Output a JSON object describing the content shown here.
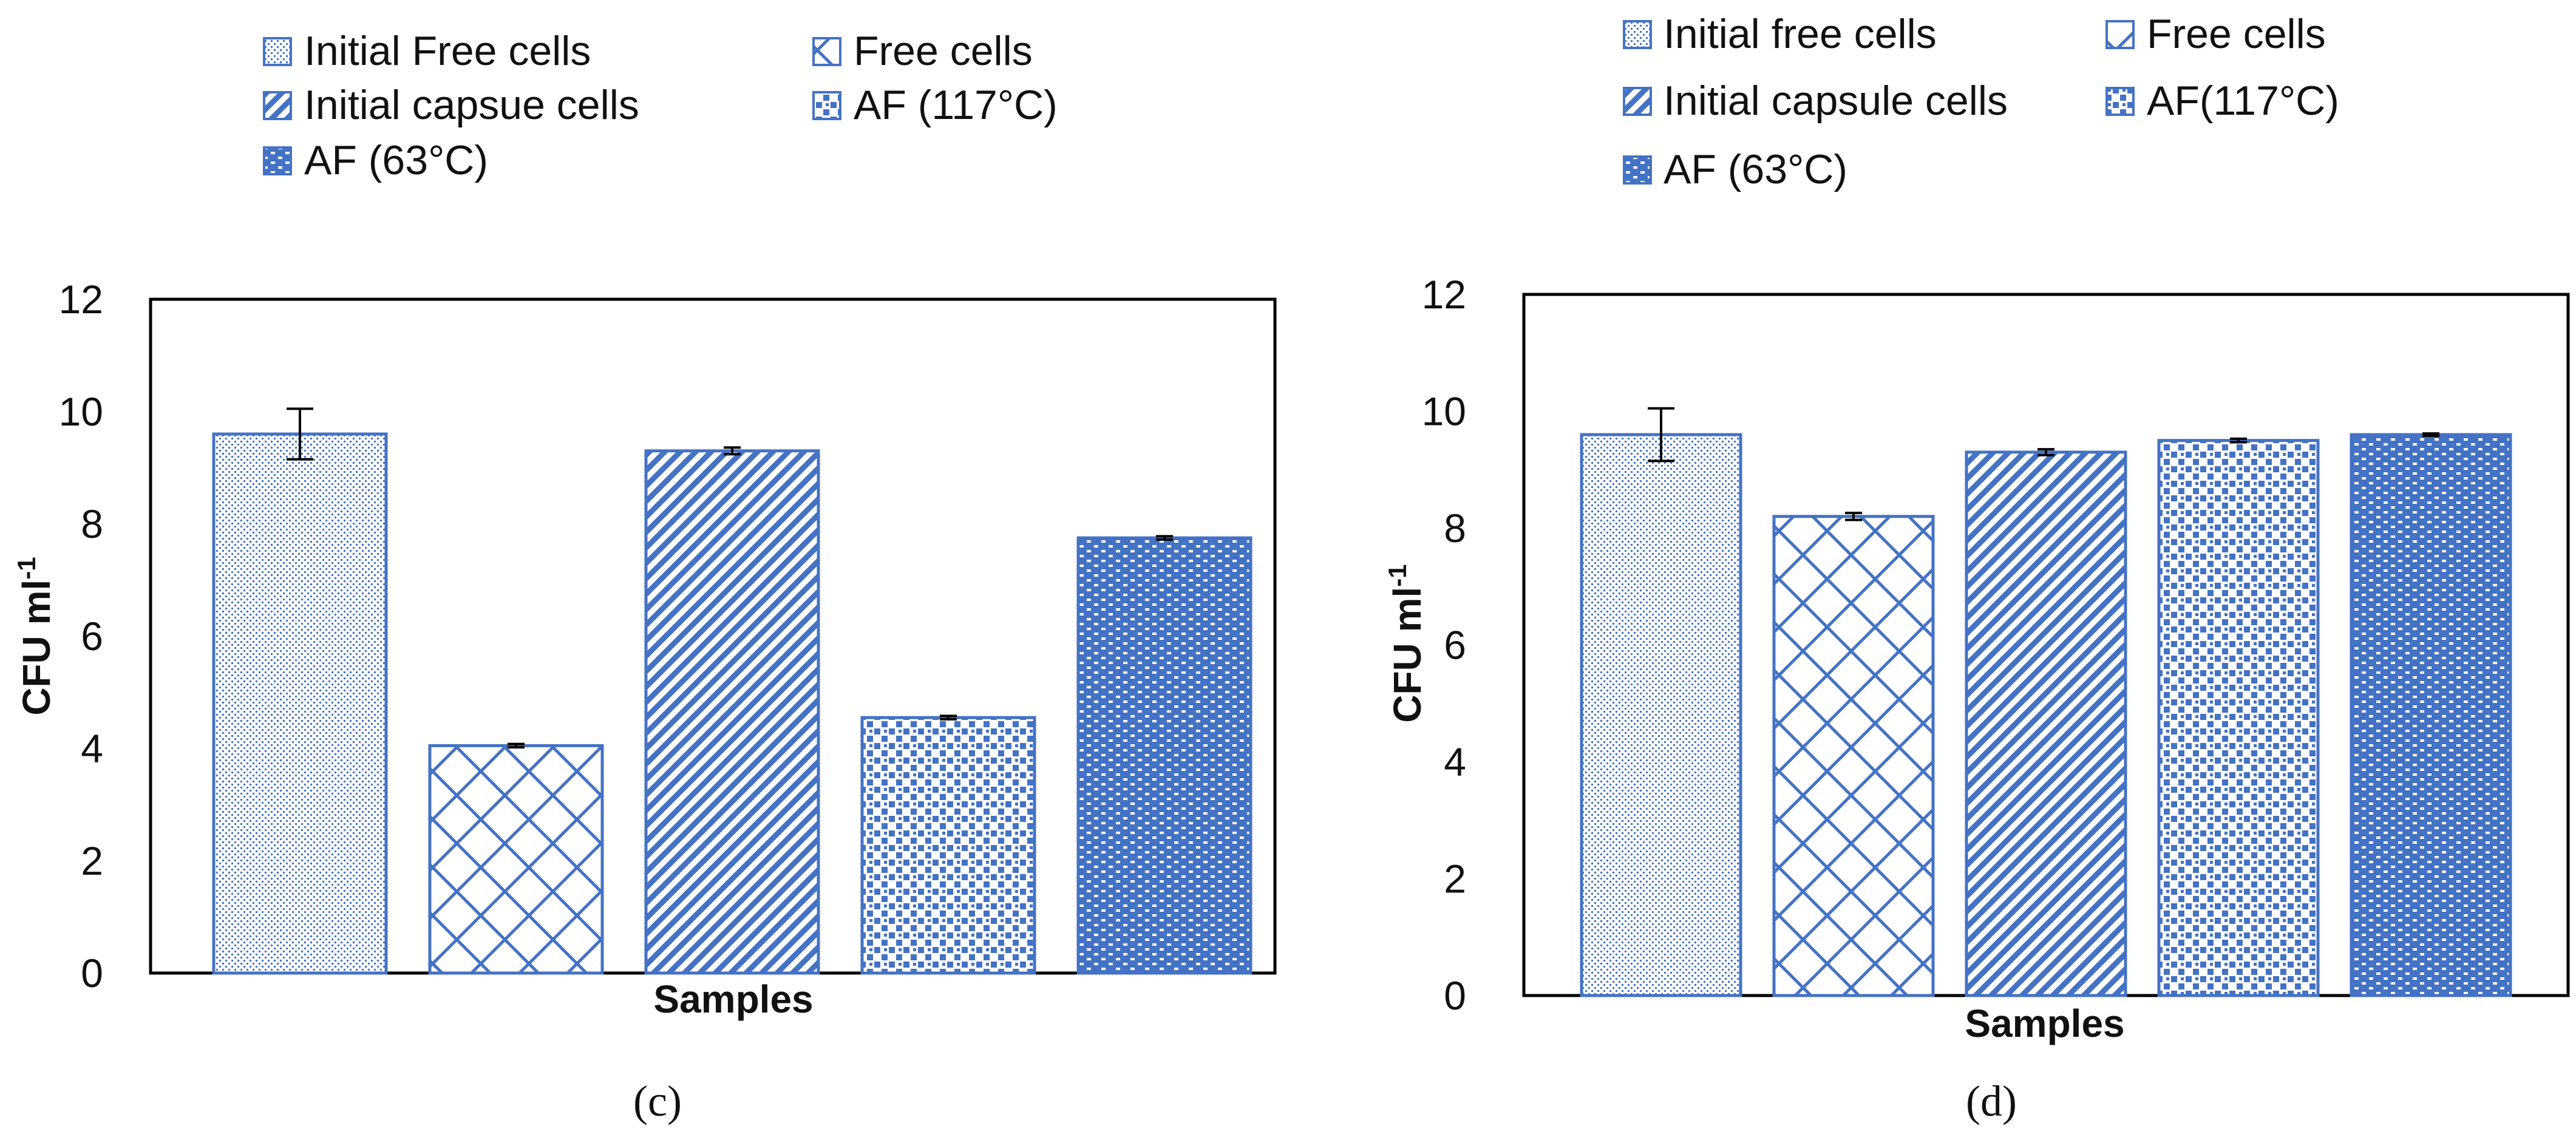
{
  "colors": {
    "bar_stroke": "#4472C4",
    "bar_fill": "#4472C4",
    "axis": "#000000",
    "error_bar": "#000000"
  },
  "chart_data": [
    {
      "type": "bar",
      "panel_label": "(c)",
      "legend": [
        "Initial Free cells",
        "Free cells",
        "Initial capsue cells",
        "AF (117°C)",
        "AF (63°C)"
      ],
      "categories": [
        "Initial Free cells",
        "Free cells",
        "Initial capsue cells",
        "AF (117°C)",
        "AF (63°C)"
      ],
      "patterns": [
        "dots",
        "crosshatch",
        "diagonal",
        "checker",
        "brick"
      ],
      "values": [
        9.6,
        4.05,
        9.3,
        4.55,
        7.75
      ],
      "errors": [
        0.45,
        0.03,
        0.06,
        0.03,
        0.03
      ],
      "xlabel": "Samples",
      "ylabel_main": "CFU ml",
      "ylabel_sup": "-1",
      "ylim": [
        0,
        12
      ],
      "yticks": [
        "0",
        "2",
        "4",
        "6",
        "8",
        "10",
        "12"
      ],
      "legend_position": "top"
    },
    {
      "type": "bar",
      "panel_label": "(d)",
      "legend": [
        "Initial free cells",
        "Free cells",
        "Initial capsule cells",
        "AF(117°C)",
        "AF (63°C)"
      ],
      "categories": [
        "Initial free cells",
        "Free cells",
        "Initial capsule cells",
        "AF(117°C)",
        "AF (63°C)"
      ],
      "patterns": [
        "dots",
        "crosshatch",
        "diagonal",
        "checker",
        "brick"
      ],
      "values": [
        9.6,
        8.2,
        9.3,
        9.5,
        9.6
      ],
      "errors": [
        0.45,
        0.06,
        0.05,
        0.03,
        0.02
      ],
      "xlabel": "Samples",
      "ylabel_main": "CFU ml",
      "ylabel_sup": "-1",
      "ylim": [
        0,
        12
      ],
      "yticks": [
        "0",
        "2",
        "4",
        "6",
        "8",
        "10",
        "12"
      ],
      "legend_position": "top"
    }
  ]
}
